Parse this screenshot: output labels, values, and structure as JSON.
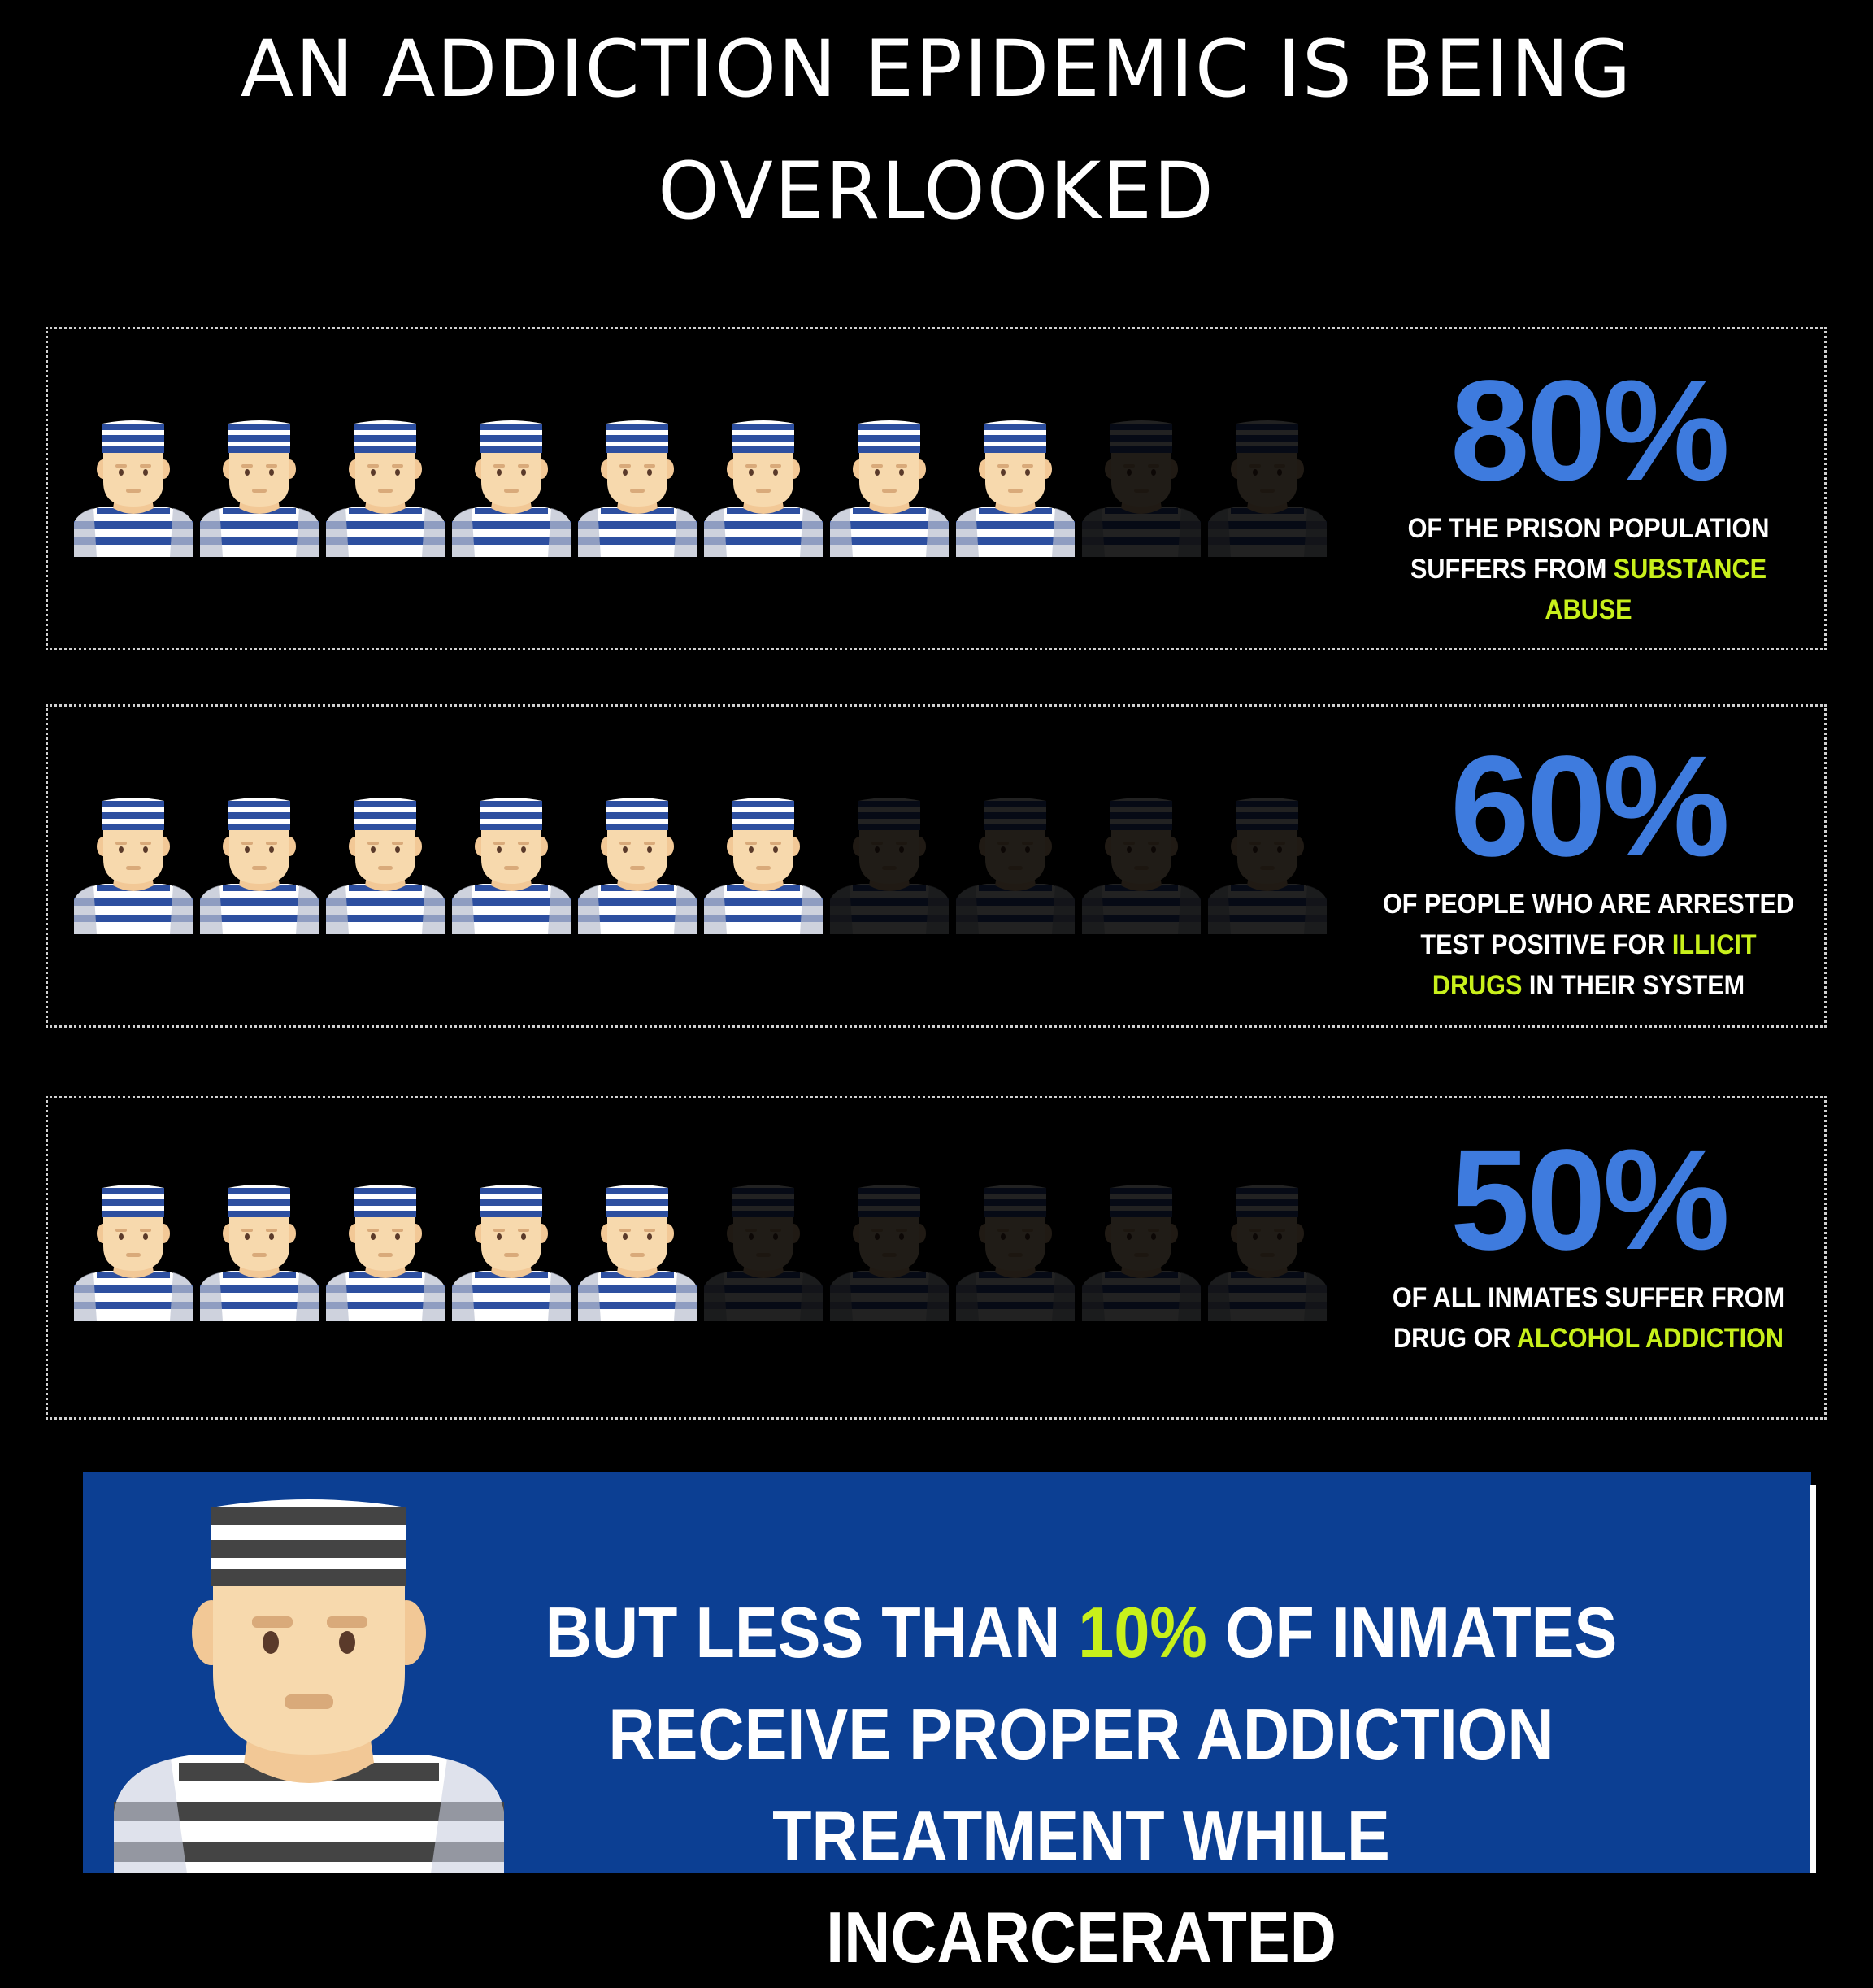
{
  "title": {
    "line1": "AN ADDICTION EPIDEMIC IS BEING",
    "line2": "OVERLOOKED"
  },
  "colors": {
    "background": "#000000",
    "stat_blue": "#3e7bde",
    "highlight": "#c8f01b",
    "banner_blue": "#0c3f93",
    "stripe_blue": "#2d4fa0",
    "skin": "#f7d9ad"
  },
  "icon_name": "prisoner-icon",
  "stats": [
    {
      "percent": "80%",
      "filled": 8,
      "total": 10,
      "pre": "OF THE PRISON POPULATION SUFFERS FROM ",
      "highlight": "SUBSTANCE ABUSE",
      "post": ""
    },
    {
      "percent": "60%",
      "filled": 6,
      "total": 10,
      "pre": "OF PEOPLE WHO ARE ARRESTED TEST POSITIVE FOR ",
      "highlight": "ILLICIT DRUGS",
      "post": " IN THEIR SYSTEM"
    },
    {
      "percent": "50%",
      "filled": 5,
      "total": 10,
      "pre": "OF ALL INMATES SUFFER FROM DRUG OR ",
      "highlight": "ALCOHOL ADDICTION",
      "post": ""
    }
  ],
  "banner": {
    "pre": "BUT LESS THAN ",
    "highlight": "10%",
    "post": " OF INMATES RECEIVE PROPER ADDICTION TREATMENT WHILE INCARCERATED"
  }
}
